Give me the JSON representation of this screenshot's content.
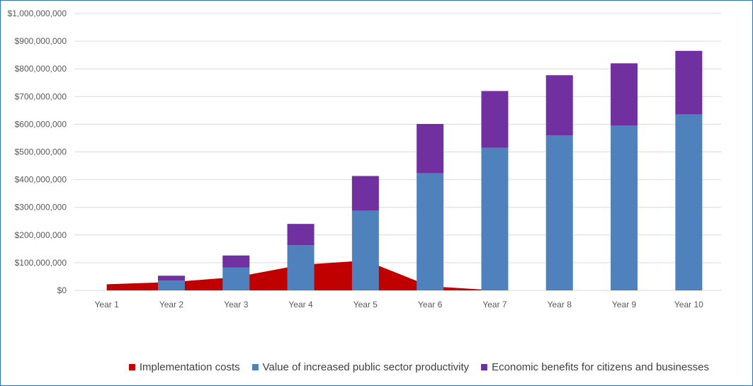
{
  "chart_data": {
    "type": "bar",
    "categories": [
      "Year 1",
      "Year 2",
      "Year 3",
      "Year 4",
      "Year 5",
      "Year 6",
      "Year 7",
      "Year 8",
      "Year 9",
      "Year 10"
    ],
    "series": [
      {
        "name": "Implementation costs",
        "chart_kind": "area",
        "color": "#c00000",
        "values": [
          22000000,
          30000000,
          48000000,
          92000000,
          108000000,
          15000000,
          0,
          0,
          0,
          0
        ]
      },
      {
        "name": "Value of increased public sector productivity",
        "chart_kind": "stacked-bar",
        "color": "#4f81bd",
        "values": [
          0,
          35000000,
          83000000,
          163000000,
          288000000,
          423000000,
          515000000,
          560000000,
          595000000,
          635000000
        ]
      },
      {
        "name": "Economic benefits for citizens and businesses",
        "chart_kind": "stacked-bar",
        "color": "#7030a0",
        "values": [
          0,
          18000000,
          43000000,
          77000000,
          125000000,
          178000000,
          205000000,
          217000000,
          225000000,
          230000000
        ]
      }
    ],
    "y_ticks": [
      "$0",
      "$100,000,000",
      "$200,000,000",
      "$300,000,000",
      "$400,000,000",
      "$500,000,000",
      "$600,000,000",
      "$700,000,000",
      "$800,000,000",
      "$900,000,000",
      "$1,000,000,000"
    ],
    "ylim": [
      0,
      1000000000
    ],
    "grid": true,
    "legend_position": "bottom",
    "title": "",
    "xlabel": "",
    "ylabel": ""
  }
}
